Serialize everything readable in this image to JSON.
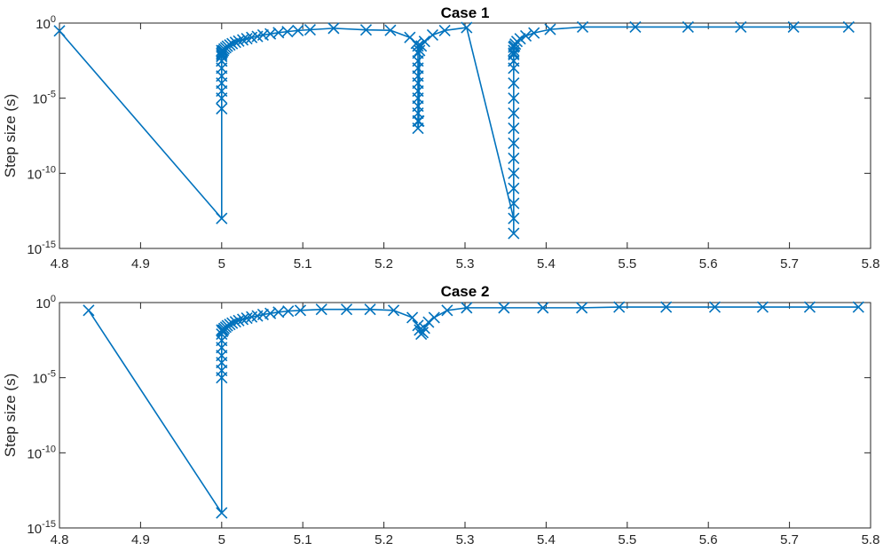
{
  "chart_data": [
    {
      "type": "line",
      "title": "Case 1",
      "ylabel": "Step size (s)",
      "xlabel": "",
      "xlim": [
        4.8,
        5.8
      ],
      "ylim": [
        1e-15,
        1
      ],
      "yscale": "log",
      "grid": false,
      "marker": "x",
      "color": "#0072BD",
      "x_ticks": [
        4.8,
        4.9,
        5,
        5.1,
        5.2,
        5.3,
        5.4,
        5.5,
        5.6,
        5.7,
        5.8
      ],
      "x_tick_labels": [
        "4.8",
        "4.9",
        "5",
        "5.1",
        "5.2",
        "5.3",
        "5.4",
        "5.5",
        "5.6",
        "5.7",
        "5.8"
      ],
      "y_ticks": [
        {
          "value": 1e-15,
          "base": "10",
          "exp": "-15"
        },
        {
          "value": 1e-10,
          "base": "10",
          "exp": "-10"
        },
        {
          "value": 1e-05,
          "base": "10",
          "exp": "-5"
        },
        {
          "value": 1,
          "base": "10",
          "exp": "0"
        }
      ],
      "series": [
        {
          "x": [
            4.8,
            5.0,
            5.0,
            5.0,
            5.0,
            5.0,
            5.0,
            5.0,
            5.0,
            5.0,
            5.0,
            5.0,
            5.0,
            5.0,
            5.001,
            5.002,
            5.003,
            5.005,
            5.007,
            5.01,
            5.013,
            5.017,
            5.021,
            5.026,
            5.031,
            5.037,
            5.044,
            5.051,
            5.06,
            5.07,
            5.081,
            5.094,
            5.109,
            5.138,
            5.178,
            5.208,
            5.232,
            5.24,
            5.242,
            5.242,
            5.242,
            5.242,
            5.242,
            5.242,
            5.242,
            5.242,
            5.242,
            5.242,
            5.242,
            5.242,
            5.243,
            5.244,
            5.246,
            5.25,
            5.26,
            5.275,
            5.302,
            5.36,
            5.36,
            5.36,
            5.36,
            5.36,
            5.36,
            5.36,
            5.36,
            5.36,
            5.36,
            5.36,
            5.36,
            5.36,
            5.36,
            5.36,
            5.36,
            5.36,
            5.36,
            5.361,
            5.362,
            5.364,
            5.368,
            5.375,
            5.385,
            5.405,
            5.445,
            5.51,
            5.575,
            5.64,
            5.705,
            5.773
          ],
          "y": [
            0.3,
            1e-13,
            2e-06,
            1e-05,
            3e-05,
            0.0001,
            0.0003,
            0.001,
            0.003,
            0.008,
            0.015,
            0.003,
            0.006,
            0.01,
            0.012,
            0.015,
            0.019,
            0.023,
            0.029,
            0.035,
            0.043,
            0.052,
            0.063,
            0.076,
            0.092,
            0.11,
            0.13,
            0.16,
            0.19,
            0.23,
            0.27,
            0.32,
            0.36,
            0.45,
            0.35,
            0.33,
            0.11,
            0.045,
            0.03,
            0.01,
            0.003,
            0.001,
            0.0003,
            0.0001,
            3e-05,
            1e-05,
            3e-06,
            1e-06,
            3e-07,
            1e-07,
            3e-07,
            0.015,
            0.03,
            0.06,
            0.16,
            0.32,
            0.5,
            1e-13,
            1e-14,
            1e-12,
            1e-11,
            1e-10,
            1e-09,
            1e-08,
            1e-07,
            1e-06,
            1e-05,
            0.0001,
            0.001,
            0.003,
            0.008,
            0.015,
            0.025,
            0.003,
            0.01,
            0.03,
            0.04,
            0.06,
            0.09,
            0.14,
            0.22,
            0.38,
            0.55,
            0.55,
            0.55,
            0.55,
            0.55,
            0.55
          ]
        }
      ]
    },
    {
      "type": "line",
      "title": "Case 2",
      "ylabel": "Step size (s)",
      "xlabel": "",
      "xlim": [
        4.8,
        5.8
      ],
      "ylim": [
        1e-15,
        1
      ],
      "yscale": "log",
      "grid": false,
      "marker": "x",
      "color": "#0072BD",
      "x_ticks": [
        4.8,
        4.9,
        5,
        5.1,
        5.2,
        5.3,
        5.4,
        5.5,
        5.6,
        5.7,
        5.8
      ],
      "x_tick_labels": [
        "4.8",
        "4.9",
        "5",
        "5.1",
        "5.2",
        "5.3",
        "5.4",
        "5.5",
        "5.6",
        "5.7",
        "5.8"
      ],
      "y_ticks": [
        {
          "value": 1e-15,
          "base": "10",
          "exp": "-15"
        },
        {
          "value": 1e-10,
          "base": "10",
          "exp": "-10"
        },
        {
          "value": 1e-05,
          "base": "10",
          "exp": "-5"
        },
        {
          "value": 1,
          "base": "10",
          "exp": "0"
        }
      ],
      "series": [
        {
          "x": [
            4.836,
            5.0,
            5.0,
            5.0,
            5.0,
            5.0,
            5.0,
            5.0,
            5.0,
            5.0,
            5.001,
            5.002,
            5.003,
            5.005,
            5.007,
            5.01,
            5.013,
            5.017,
            5.021,
            5.026,
            5.031,
            5.037,
            5.044,
            5.051,
            5.06,
            5.07,
            5.082,
            5.097,
            5.123,
            5.154,
            5.183,
            5.212,
            5.235,
            5.242,
            5.244,
            5.246,
            5.248,
            5.25,
            5.255,
            5.262,
            5.278,
            5.302,
            5.348,
            5.396,
            5.444,
            5.49,
            5.548,
            5.608,
            5.667,
            5.725,
            5.785
          ],
          "y": [
            0.3,
            1e-14,
            1e-05,
            3e-05,
            0.0001,
            0.0003,
            0.001,
            0.003,
            0.008,
            0.015,
            0.012,
            0.015,
            0.019,
            0.023,
            0.029,
            0.035,
            0.043,
            0.052,
            0.063,
            0.076,
            0.092,
            0.11,
            0.13,
            0.16,
            0.19,
            0.23,
            0.27,
            0.3,
            0.35,
            0.35,
            0.35,
            0.3,
            0.1,
            0.03,
            0.015,
            0.008,
            0.01,
            0.02,
            0.05,
            0.1,
            0.3,
            0.45,
            0.45,
            0.45,
            0.45,
            0.5,
            0.5,
            0.5,
            0.5,
            0.5,
            0.5
          ]
        }
      ]
    }
  ]
}
